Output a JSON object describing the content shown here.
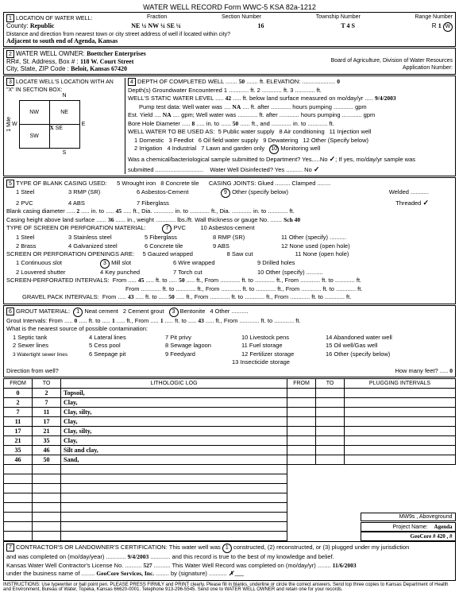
{
  "header": {
    "title": "WATER WELL RECORD    Form WWC-5    KSA 82a-1212"
  },
  "sec1": {
    "label": "LOCATION OF WATER WELL:",
    "county_lbl": "County:",
    "county": "Republic",
    "fraction_lbl": "Fraction",
    "fraction": "NE ¼    NW ¼    SE ¼",
    "section_lbl": "Section Number",
    "section": "16",
    "township_lbl": "Township Number",
    "township": "T     4     S",
    "range_lbl": "Range Number",
    "range_r": "R",
    "range_n": "1",
    "range_ew": "E W",
    "distance": "Distance and direction from nearest town or city street address of well if located within city?",
    "distance_val": "Adjacent to south end of Agenda, Kansas"
  },
  "sec2": {
    "label": "WATER WELL OWNER:",
    "owner": "Boettcher Enterprises",
    "addr_lbl": "RR#, St. Address, Box # :",
    "addr": "118 W. Court Street",
    "csz_lbl": "City, State, ZIP Code :",
    "csz": "Beloit, Kansas  67420",
    "board": "Board of Agriculture, Division of Water Resources",
    "appnum": "Application Number:"
  },
  "sec3": {
    "label": "LOCATE WELL'S LOCATION WITH AN \"X\" IN SECTION BOX:",
    "nw": "NW",
    "ne": "NE",
    "sw": "SW",
    "se": "SE",
    "n": "N",
    "s": "S",
    "w": "W",
    "e": "E",
    "mile": "1 Mile",
    "x": "X"
  },
  "sec4": {
    "depth_lbl": "DEPTH OF COMPLETED WELL",
    "depth": "50",
    "elev_lbl": "ft.  ELEVATION:",
    "elev": "0",
    "gw_lbl": "Depth(s) Groundwater Encountered",
    "gw1": "1",
    "gw2": "2",
    "gw3": "3",
    "swl_lbl": "WELL'S STATIC WATER LEVEL",
    "swl": "42",
    "swl_after": "ft. below land surface measured on mo/day/yr",
    "swl_date": "9/4/2003",
    "pump_lbl": "Pump test data:  Well water was",
    "pump_na": "NA",
    "pump_after": "ft. after ............ hours pumping ............ gpm",
    "est_lbl": "Est. Yield",
    "est_na": "NA",
    "est_gpm": "gpm;   Well water was ............ ft. after ............ hours pumping ............ gpm",
    "bore_lbl": "Bore Hole Diameter",
    "bore_d": "8",
    "bore_in_to": "in. to",
    "bore_to": "50",
    "bore_ft_and": "ft., and ............ in. to ............ ft.",
    "use_lbl": "WELL WATER TO BE USED AS:",
    "use5": "5  Public water supply",
    "use8": "8  Air conditioning",
    "use11": "11  Injection well",
    "use1": "1  Domestic",
    "use3": "3  Feedlot",
    "use6": "6  Oil field water supply",
    "use9": "9  Dewatering",
    "use12": "12  Other (Specify below)",
    "use2": "2  Irrigation",
    "use4": "4  Industrial",
    "use7": "7  Lawn and garden only",
    "use10_num": "10",
    "use10": "Monitoring well",
    "chem_lbl": "Was a chemical/bacteriological sample submitted to Department?  Yes.....No",
    "chem_after": "; If yes, mo/day/yr sample was",
    "submitted": "submitted .............................",
    "disinf": "Water Well Disinfected?   Yes ..........  No",
    "checkmark": "✓",
    "checkmark2": "✓"
  },
  "sec5": {
    "label": "TYPE OF BLANK CASING USED:",
    "c1": "1  Steel",
    "c3": "3  RMP (SR)",
    "c5": "5  Wrought iron",
    "c8": "8  Concrete tile",
    "c2": "2  PVC",
    "c4": "4  ABS",
    "c6": "6  Asbestos-Cement",
    "c9num": "9",
    "c9": "Other (specify below)",
    "c7": "7  Fiberglass",
    "joints_lbl": "CASING JOINTS:  Glued ......... Clamped ........",
    "welded": "Welded ...........",
    "threaded": "Threaded",
    "bcd_lbl": "Blank casing diameter",
    "bcd_1": "2",
    "bcd_2": "45",
    "bcd_rest": "ft., Dia. ............ in. to ............ ft., Dia. ............ in. to ............ ft.",
    "chals_lbl": "Casing height above land surface",
    "chals": "36",
    "chals_wt": "in., weight ............ lbs./ft.  Wall thickness or gauge No.",
    "chals_sch": "Sch 40",
    "screen_lbl": "TYPE OF SCREEN OR PERFORATION MATERIAL:",
    "s1": "1  Steel",
    "s3": "3  Stainless steel",
    "s5": "5  Fiberglass",
    "s7num": "7",
    "s7": "PVC",
    "s8": "8  RMP (SR)",
    "s10": "10  Asbestos-cement",
    "s2": "2  Brass",
    "s4": "4  Galvanized steel",
    "s6": "6  Concrete tile",
    "s9": "9  ABS",
    "s11": "11  Other (specify) ..........",
    "s12": "12  None used (open hole)",
    "open_lbl": "SCREEN OR PERFORATION OPENINGS ARE:",
    "o1": "1  Continuous slot",
    "o3num": "3",
    "o3": "Mill slot",
    "o5": "5  Gauzed wrapped",
    "o8": "8  Saw cut",
    "o11": "11  None (open hole)",
    "o2": "2  Louvered shutter",
    "o4": "4  Key punched",
    "o6": "6  Wire wrapped",
    "o9": "9  Drilled holes",
    "o7": "7  Torch cut",
    "o10": "10  Other (specify) ..........",
    "spi_lbl": "SCREEN-PERFORATED INTERVALS:",
    "spi_from1": "45",
    "spi_to1": "50",
    "spi_rest": "ft., From ............ ft. to ............ ft., From ............ ft. to ............ ft.",
    "spi_rest2": "From ............ ft. to ............ ft., From ............ ft. to ............ ft., From ............ ft. to ............ ft.",
    "gpi_lbl": "GRAVEL PACK INTERVALS:",
    "gpi_from1": "43",
    "gpi_to1": "50",
    "gpi_rest": "ft., From ............ ft. to ............ ft., From ............ ft. to ............ ft."
  },
  "sec6": {
    "label": "GROUT MATERIAL:",
    "g1num": "1",
    "g1": "Neat cement",
    "g2": "2  Cement grout",
    "g3num": "3",
    "g3": "Bentonite",
    "g4": "4  Other ..........",
    "gi_lbl": "Grout Intervals:   From",
    "gi_f1": "0",
    "gi_t1": "1",
    "gi_mid": "ft., From",
    "gi_f2": "1",
    "gi_t2": "43",
    "gi_rest": "ft., From ............ ft. to ............ ft.",
    "contam": "What is the nearest source of possible contamination:",
    "p1": "1  Septic tank",
    "p4": "4  Lateral lines",
    "p7": "7  Pit privy",
    "p10": "10  Livestock pens",
    "p14": "14  Abandoned water well",
    "p2": "2  Sewer lines",
    "p5": "5  Cess pool",
    "p8": "8  Sewage lagoon",
    "p11": "11  Fuel storage",
    "p15": "15  Oil well/Gas well",
    "p3": "3  Watertight sewer lines",
    "p6": "6  Seepage pit",
    "p9": "9  Feedyard",
    "p12": "12  Fertilizer storage",
    "p16": "16  Other (specify below)",
    "p13": "13  Insecticide storage",
    "dir_lbl": "Direction from well?",
    "howmany": "How many feet?",
    "howmany_v": "0"
  },
  "log": {
    "h_from": "FROM",
    "h_to": "TO",
    "h_lith": "LITHOLOGIC LOG",
    "h_from2": "FROM",
    "h_to2": "TO",
    "h_plug": "PLUGGING INTERVALS",
    "rows": [
      {
        "f": "0",
        "t": "2",
        "d": "Topsoil,"
      },
      {
        "f": "2",
        "t": "7",
        "d": "Clay,"
      },
      {
        "f": "7",
        "t": "11",
        "d": "Clay, silty,"
      },
      {
        "f": "11",
        "t": "17",
        "d": "Clay,"
      },
      {
        "f": "17",
        "t": "21",
        "d": "Clay, silty,"
      },
      {
        "f": "21",
        "t": "35",
        "d": "Clay,"
      },
      {
        "f": "35",
        "t": "46",
        "d": "Silt and clay,"
      },
      {
        "f": "46",
        "t": "50",
        "d": "Sand,"
      }
    ],
    "bb1": "MW9s , Aboveground",
    "bb2_lbl": "Project Name:",
    "bb2": "Agenda",
    "bb3": "GeoCore # 420 , #"
  },
  "sec7": {
    "label": "CONTRACTOR'S OR LANDOWNER'S CERTIFICATION:  This water well was",
    "cnum": "1",
    "label2": "constructed, (2) reconstructed, or (3) plugged under my jurisdiction",
    "line2a": "and was completed on (mo/day/year)",
    "date1": "9/4/2003",
    "line2b": "and this record is true to the best of my knowledge and belief.",
    "line3a": "Kansas Water Well Contractor's License No.",
    "lic": "527",
    "line3b": "This Water Well Record was completed on (mo/day/yr)",
    "date2": "11/6/2003",
    "line4a": "under the business name of",
    "biz": "GeoCore Services, Inc.",
    "line4b": "by (signature)",
    "sig": "✗  ___"
  },
  "instr": "INSTRUCTIONS: Use typewriter or ball point pen. PLEASE PRESS FIRMLY and PRINT clearly. Please fill in blanks, underline or circle the correct answers. Send top three copies to Kansas Department of Health and Environment, Bureau of Water, Topeka, Kansas 66620-0001. Telephone 913-296-5545. Send one to WATER WELL OWNER and retain one for your records."
}
